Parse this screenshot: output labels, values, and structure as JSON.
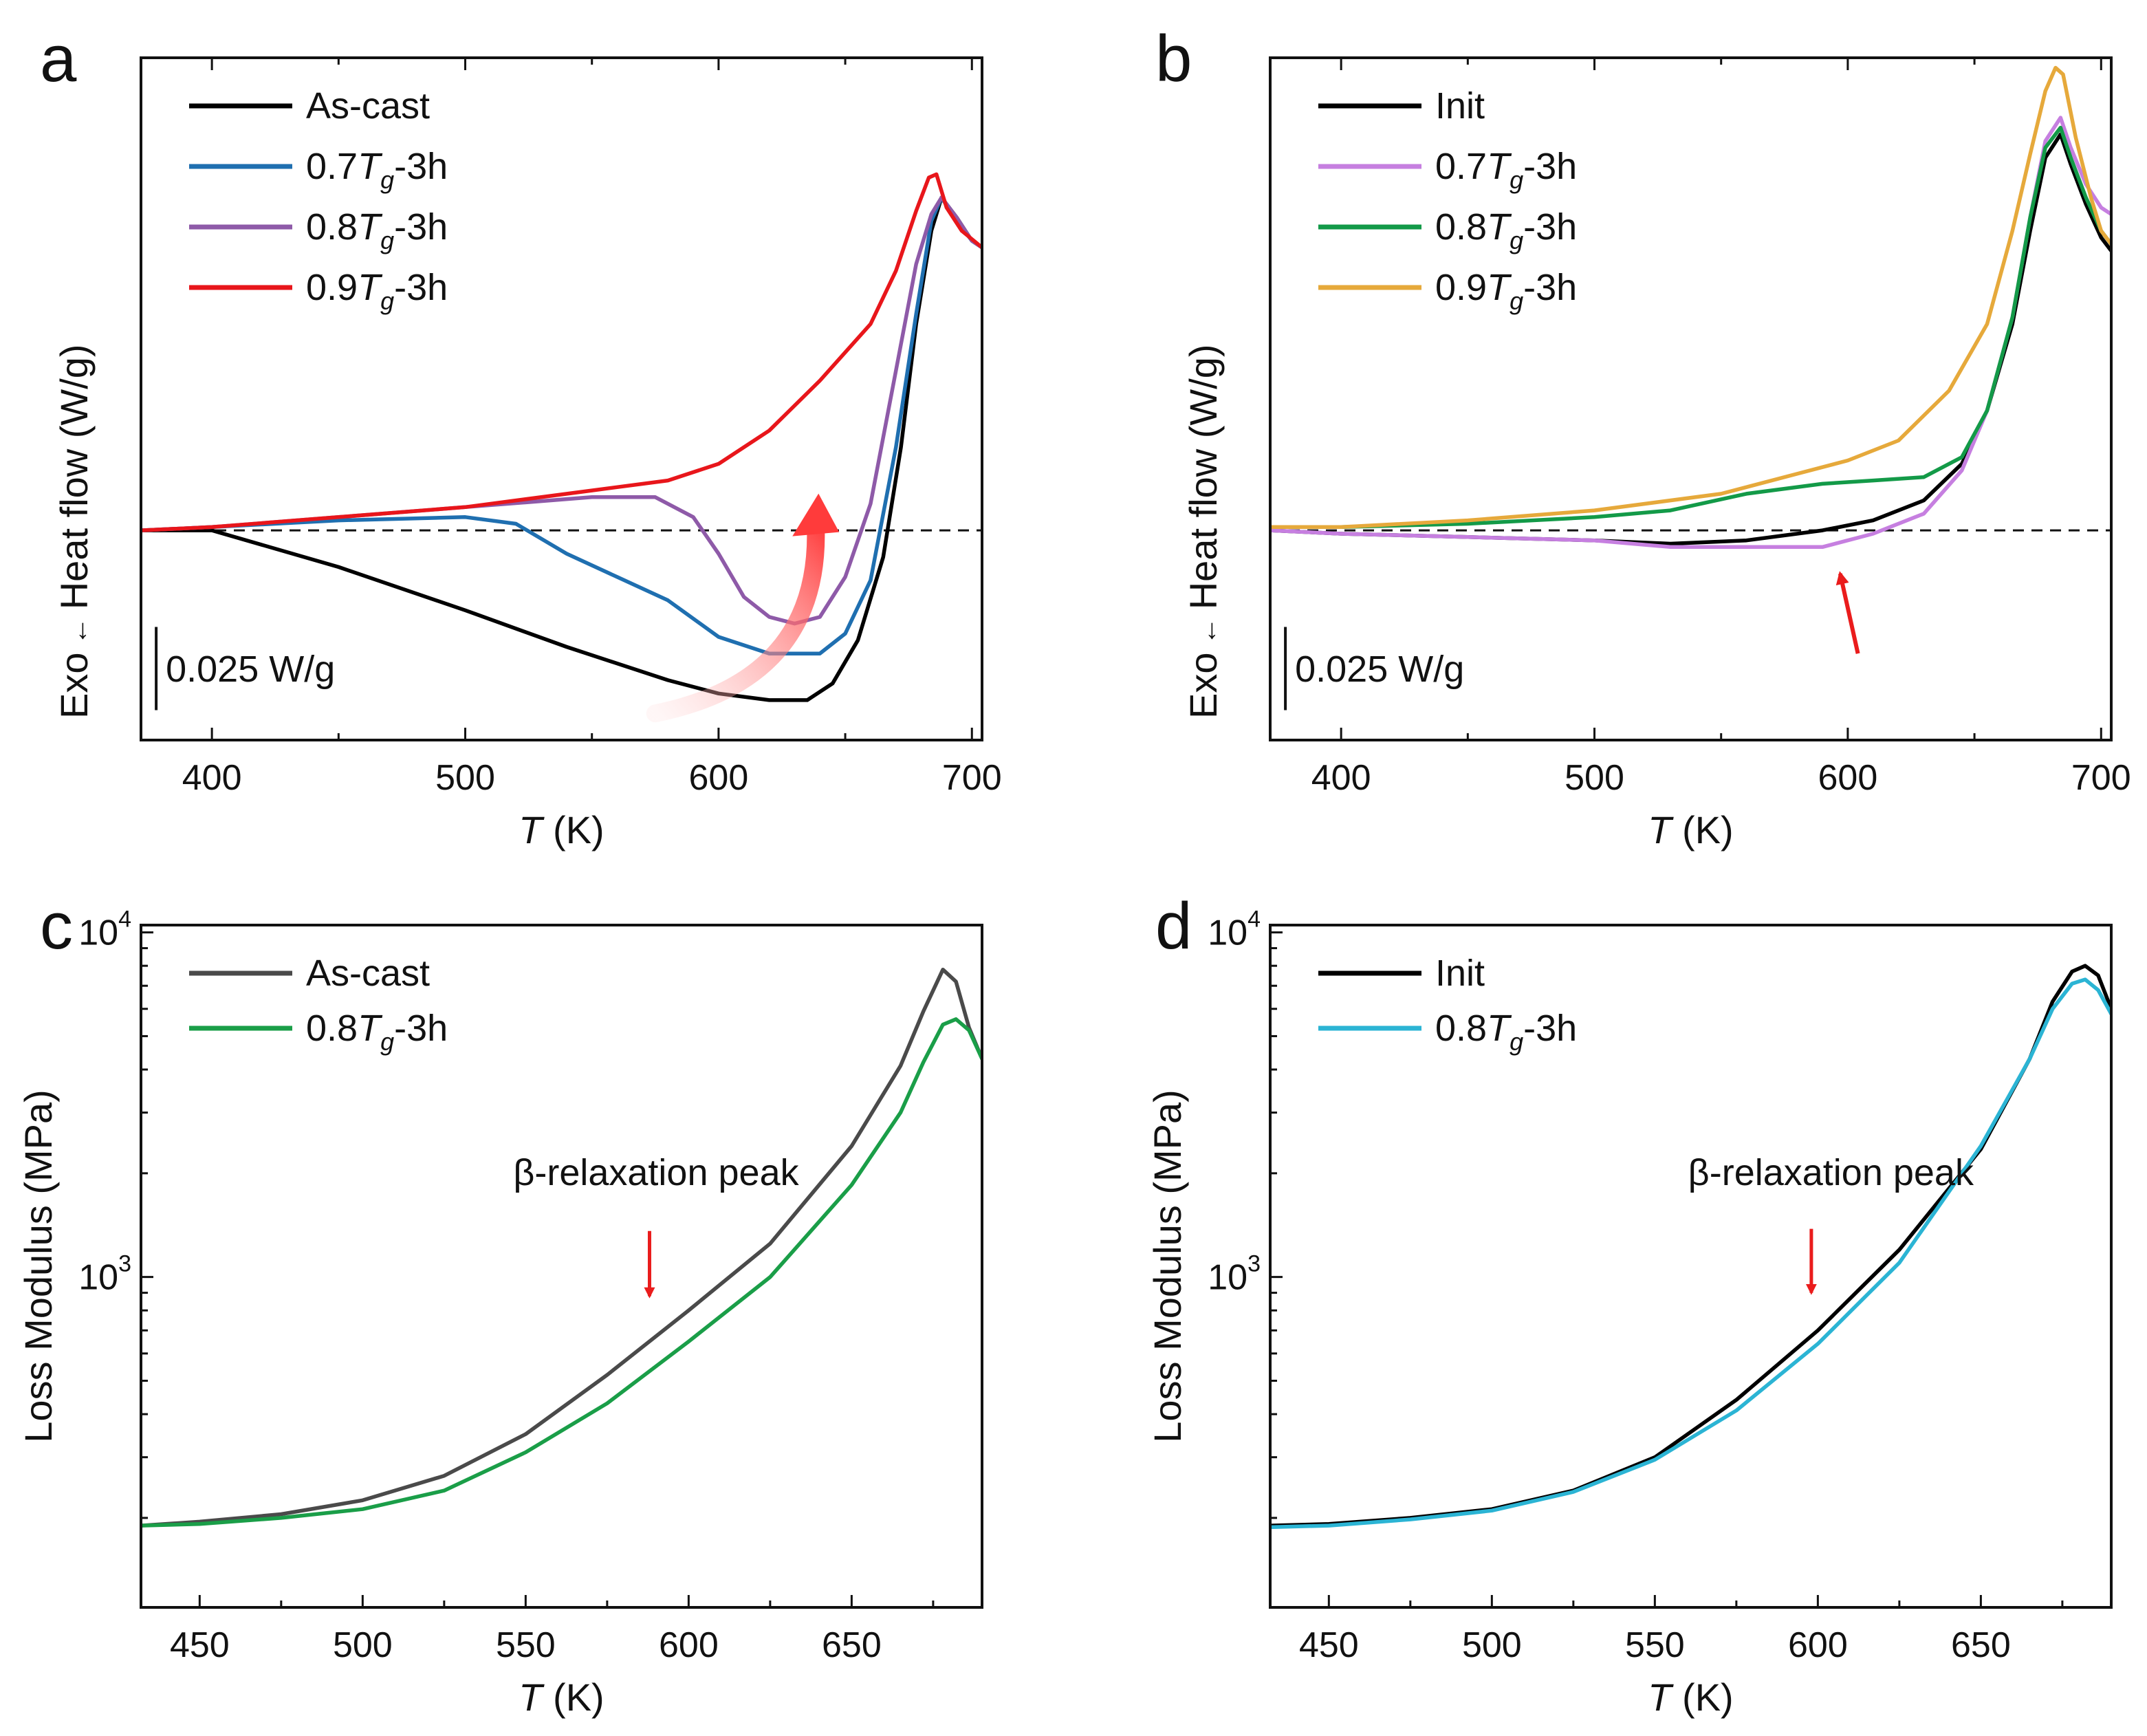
{
  "chart_data": [
    {
      "panel": "a",
      "type": "line",
      "xlabel_var": "T",
      "xlabel_unit": " (K)",
      "ylabel_lead": "Exo",
      "ylabel": "Heat flow (W/g)",
      "xlim": [
        372,
        704
      ],
      "ylim": [
        -0.063,
        0.142
      ],
      "xticks": [
        400,
        500,
        600,
        700
      ],
      "yticks": [],
      "scale_bar": {
        "value": 0.025,
        "label": "0.025 W/g",
        "x": 378,
        "y_bottom": -0.054
      },
      "baseline_y": 0,
      "legend": [
        {
          "prefix": "As-cast",
          "var": "",
          "sub": "",
          "suffix": ""
        },
        {
          "prefix": "0.7",
          "var": "T",
          "sub": "g",
          "suffix": "-3h"
        },
        {
          "prefix": "0.8",
          "var": "T",
          "sub": "g",
          "suffix": "-3h"
        },
        {
          "prefix": "0.9",
          "var": "T",
          "sub": "g",
          "suffix": "-3h"
        }
      ],
      "series": [
        {
          "name": "As-cast",
          "color": "#000000",
          "x": [
            372,
            400,
            450,
            500,
            540,
            580,
            600,
            620,
            635,
            645,
            655,
            665,
            672,
            678,
            684,
            688,
            694,
            700,
            704
          ],
          "y": [
            0,
            0,
            -0.011,
            -0.024,
            -0.035,
            -0.045,
            -0.049,
            -0.051,
            -0.051,
            -0.046,
            -0.033,
            -0.008,
            0.025,
            0.062,
            0.09,
            0.1,
            0.094,
            0.087,
            0.085
          ]
        },
        {
          "name": "0.7Tg-3h",
          "color": "#1f6fb0",
          "x": [
            372,
            400,
            450,
            500,
            520,
            540,
            560,
            580,
            600,
            620,
            640,
            650,
            660,
            670,
            678,
            684,
            688,
            694,
            700,
            704
          ],
          "y": [
            0,
            0.001,
            0.003,
            0.004,
            0.002,
            -0.007,
            -0.014,
            -0.021,
            -0.032,
            -0.037,
            -0.037,
            -0.031,
            -0.015,
            0.025,
            0.065,
            0.093,
            0.1,
            0.093,
            0.087,
            0.085
          ]
        },
        {
          "name": "0.8Tg-3h",
          "color": "#8e5aa8",
          "x": [
            372,
            400,
            450,
            500,
            550,
            575,
            590,
            600,
            610,
            620,
            630,
            640,
            650,
            660,
            670,
            678,
            684,
            688,
            694,
            700,
            704
          ],
          "y": [
            0,
            0.001,
            0.004,
            0.007,
            0.01,
            0.01,
            0.004,
            -0.007,
            -0.02,
            -0.026,
            -0.028,
            -0.026,
            -0.014,
            0.008,
            0.048,
            0.08,
            0.095,
            0.1,
            0.094,
            0.087,
            0.085
          ]
        },
        {
          "name": "0.9Tg-3h",
          "color": "#e8161b",
          "x": [
            372,
            400,
            450,
            500,
            550,
            580,
            600,
            620,
            640,
            660,
            670,
            678,
            683,
            686,
            690,
            696,
            704
          ],
          "y": [
            0,
            0.001,
            0.004,
            0.007,
            0.012,
            0.015,
            0.02,
            0.03,
            0.045,
            0.062,
            0.078,
            0.096,
            0.106,
            0.107,
            0.097,
            0.09,
            0.085
          ]
        }
      ]
    },
    {
      "panel": "b",
      "type": "line",
      "xlabel_var": "T",
      "xlabel_unit": " (K)",
      "ylabel_lead": "Exo",
      "ylabel": "Heat flow (W/g)",
      "xlim": [
        372,
        704
      ],
      "ylim": [
        -0.063,
        0.142
      ],
      "xticks": [
        400,
        500,
        600,
        700
      ],
      "yticks": [],
      "scale_bar": {
        "value": 0.025,
        "label": "0.025 W/g",
        "x": 378,
        "y_bottom": -0.054
      },
      "baseline_y": 0,
      "annotation_arrow": {
        "x_from": 604,
        "y_from": -0.037,
        "x_to": 597,
        "y_to": -0.013
      },
      "legend": [
        {
          "prefix": "Init",
          "var": "",
          "sub": "",
          "suffix": ""
        },
        {
          "prefix": "0.7",
          "var": "T",
          "sub": "g",
          "suffix": "-3h"
        },
        {
          "prefix": "0.8",
          "var": "T",
          "sub": "g",
          "suffix": "-3h"
        },
        {
          "prefix": "0.9",
          "var": "T",
          "sub": "g",
          "suffix": "-3h"
        }
      ],
      "series": [
        {
          "name": "Init",
          "color": "#000000",
          "x": [
            372,
            400,
            450,
            500,
            530,
            560,
            590,
            610,
            630,
            645,
            655,
            665,
            672,
            678,
            684,
            688,
            694,
            700,
            704
          ],
          "y": [
            0,
            -0.001,
            -0.002,
            -0.003,
            -0.004,
            -0.003,
            0,
            0.003,
            0.009,
            0.02,
            0.036,
            0.062,
            0.09,
            0.112,
            0.119,
            0.11,
            0.098,
            0.088,
            0.084
          ]
        },
        {
          "name": "0.7Tg-3h",
          "color": "#c67fe0",
          "x": [
            372,
            400,
            450,
            500,
            530,
            560,
            590,
            610,
            630,
            645,
            655,
            665,
            672,
            678,
            684,
            688,
            694,
            700,
            704
          ],
          "y": [
            0,
            -0.001,
            -0.002,
            -0.003,
            -0.005,
            -0.005,
            -0.005,
            -0.001,
            0.005,
            0.018,
            0.036,
            0.064,
            0.094,
            0.117,
            0.124,
            0.115,
            0.104,
            0.097,
            0.095
          ]
        },
        {
          "name": "0.8Tg-3h",
          "color": "#139a48",
          "x": [
            372,
            400,
            450,
            500,
            530,
            560,
            590,
            610,
            630,
            645,
            655,
            665,
            672,
            678,
            684,
            688,
            694,
            700,
            704
          ],
          "y": [
            0.001,
            0.001,
            0.002,
            0.004,
            0.006,
            0.011,
            0.014,
            0.015,
            0.016,
            0.022,
            0.036,
            0.064,
            0.094,
            0.115,
            0.121,
            0.112,
            0.1,
            0.09,
            0.086
          ]
        },
        {
          "name": "0.9Tg-3h",
          "color": "#e6a93b",
          "x": [
            372,
            400,
            450,
            500,
            550,
            580,
            600,
            620,
            640,
            655,
            665,
            672,
            678,
            682,
            685,
            690,
            696,
            700,
            704
          ],
          "y": [
            0.001,
            0.001,
            0.003,
            0.006,
            0.011,
            0.017,
            0.021,
            0.027,
            0.042,
            0.062,
            0.09,
            0.113,
            0.132,
            0.139,
            0.137,
            0.118,
            0.1,
            0.09,
            0.086
          ]
        }
      ]
    },
    {
      "panel": "c",
      "type": "line",
      "yscale": "log",
      "xlabel_var": "T",
      "xlabel_unit": " (K)",
      "ylabel": "Loss Modulus (MPa)",
      "xlim": [
        432,
        690
      ],
      "ylim": [
        110,
        10500
      ],
      "xticks": [
        450,
        500,
        550,
        600,
        650
      ],
      "yticks": [
        {
          "value": 1000,
          "base": "10",
          "exp": "3"
        },
        {
          "value": 10000,
          "base": "10",
          "exp": "4"
        }
      ],
      "annotation": {
        "text": "β-relaxation peak",
        "x": 590,
        "y": 1850,
        "arrow_x": 588,
        "arrow_y_from": 1360,
        "arrow_y_to": 880
      },
      "legend": [
        {
          "prefix": "As-cast",
          "var": "",
          "sub": "",
          "suffix": ""
        },
        {
          "prefix": "0.8",
          "var": "T",
          "sub": "g",
          "suffix": "-3h"
        }
      ],
      "series": [
        {
          "name": "As-cast",
          "color": "#4a4a4a",
          "x": [
            432,
            450,
            475,
            500,
            525,
            550,
            575,
            600,
            625,
            650,
            665,
            672,
            678,
            682,
            686,
            690
          ],
          "y": [
            190,
            195,
            205,
            225,
            265,
            350,
            520,
            800,
            1250,
            2400,
            4100,
            5900,
            7800,
            7200,
            5300,
            4300
          ]
        },
        {
          "name": "0.8Tg-3h",
          "color": "#1a9e48",
          "x": [
            432,
            450,
            475,
            500,
            525,
            550,
            575,
            600,
            625,
            650,
            665,
            672,
            678,
            682,
            686,
            690
          ],
          "y": [
            190,
            192,
            200,
            212,
            240,
            310,
            430,
            650,
            1000,
            1850,
            3000,
            4200,
            5400,
            5600,
            5200,
            4300
          ]
        }
      ]
    },
    {
      "panel": "d",
      "type": "line",
      "yscale": "log",
      "xlabel_var": "T",
      "xlabel_unit": " (K)",
      "ylabel": "Loss Modulus (MPa)",
      "xlim": [
        432,
        690
      ],
      "ylim": [
        110,
        10500
      ],
      "xticks": [
        450,
        500,
        550,
        600,
        650
      ],
      "yticks": [
        {
          "value": 1000,
          "base": "10",
          "exp": "3"
        },
        {
          "value": 10000,
          "base": "10",
          "exp": "4"
        }
      ],
      "annotation": {
        "text": "β-relaxation peak",
        "x": 604,
        "y": 1850,
        "arrow_x": 598,
        "arrow_y_from": 1380,
        "arrow_y_to": 900
      },
      "legend": [
        {
          "prefix": "Init",
          "var": "",
          "sub": "",
          "suffix": ""
        },
        {
          "prefix": "0.8",
          "var": "T",
          "sub": "g",
          "suffix": "-3h"
        }
      ],
      "series": [
        {
          "name": "Init",
          "color": "#000000",
          "x": [
            432,
            450,
            475,
            500,
            525,
            550,
            575,
            600,
            625,
            650,
            665,
            672,
            678,
            682,
            686,
            690
          ],
          "y": [
            190,
            192,
            200,
            212,
            240,
            300,
            440,
            700,
            1200,
            2350,
            4300,
            6300,
            7700,
            8000,
            7500,
            6000
          ]
        },
        {
          "name": "0.8Tg-3h",
          "color": "#2bb4d4",
          "x": [
            432,
            450,
            475,
            500,
            525,
            550,
            575,
            600,
            625,
            650,
            665,
            672,
            678,
            682,
            686,
            690
          ],
          "y": [
            188,
            190,
            198,
            210,
            238,
            295,
            410,
            640,
            1100,
            2400,
            4300,
            6000,
            7100,
            7300,
            6800,
            5800
          ]
        }
      ]
    }
  ]
}
